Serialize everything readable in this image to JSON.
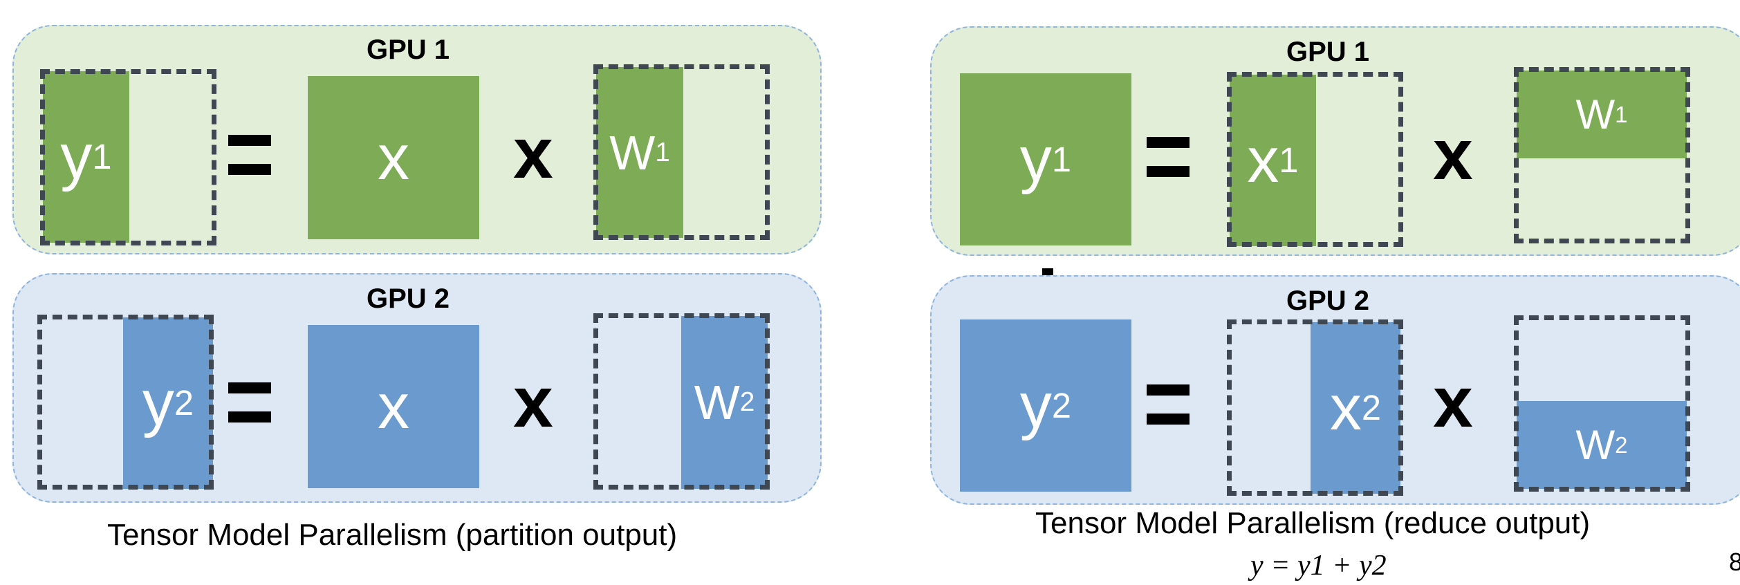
{
  "left": {
    "gpu1": {
      "label": "GPU 1",
      "y": {
        "base": "y",
        "sub": "1"
      },
      "x": "x",
      "w": {
        "base": "W",
        "sub": "1"
      }
    },
    "gpu2": {
      "label": "GPU 2",
      "y": {
        "base": "y",
        "sub": "2"
      },
      "x": "x",
      "w": {
        "base": "W",
        "sub": "2"
      }
    },
    "multiply": "x",
    "caption": "Tensor Model Parallelism (partition output)"
  },
  "right": {
    "gpu1": {
      "label": "GPU 1",
      "y": {
        "base": "y",
        "sub": "1"
      },
      "x": {
        "base": "x",
        "sub": "1"
      },
      "w": {
        "base": "W",
        "sub": "1"
      }
    },
    "gpu2": {
      "label": "GPU 2",
      "y": {
        "base": "y",
        "sub": "2"
      },
      "x": {
        "base": "x",
        "sub": "2"
      },
      "w": {
        "base": "W",
        "sub": "2"
      }
    },
    "multiply": "x",
    "caption": "Tensor Model Parallelism (reduce output)",
    "equation": "y = y1 + y2"
  },
  "page_number": "8",
  "colors": {
    "green_block": "#7dab56",
    "green_panel": "#e3eed9",
    "blue_block": "#6b9acf",
    "blue_panel": "#dee8f4",
    "dashed_outline": "#3f4753"
  }
}
